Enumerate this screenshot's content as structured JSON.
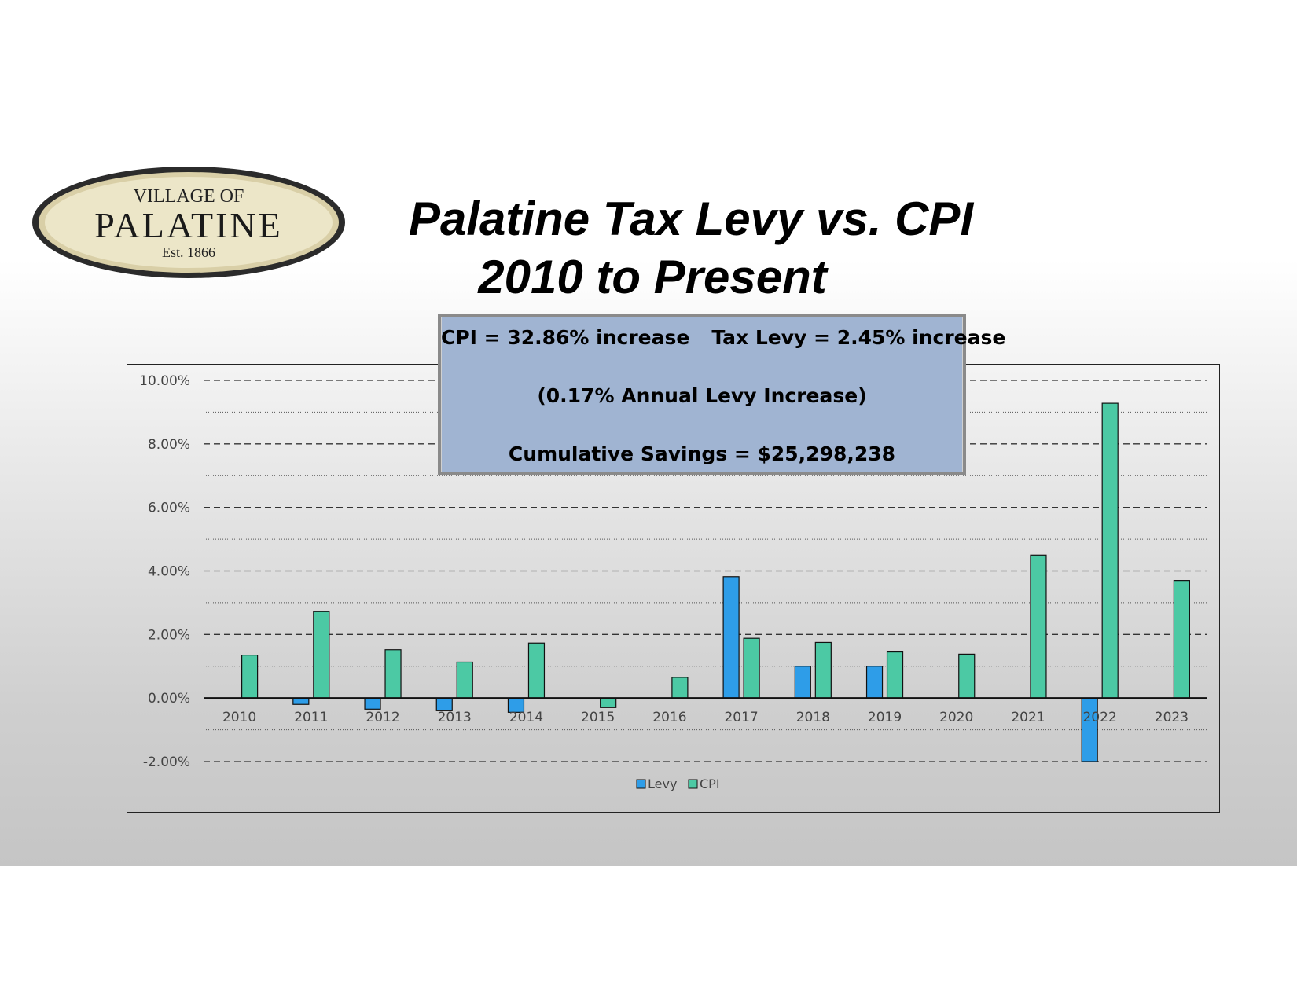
{
  "logo": {
    "line1": "VILLAGE OF",
    "line2": "PALATINE",
    "line3": "Est. 1866"
  },
  "title": {
    "line1": "Palatine Tax Levy vs. CPI",
    "line2": "2010 to Present"
  },
  "summary": {
    "cpi": "CPI = 32.86% increase",
    "levy": "Tax Levy = 2.45% increase",
    "annual": "(0.17% Annual Levy Increase)",
    "savings": "Cumulative Savings = $25,298,238"
  },
  "colors": {
    "levy": "#2e9de8",
    "cpi": "#4cc9a4",
    "summary_box": "#a0b4d2"
  },
  "chart_data": {
    "type": "bar",
    "categories": [
      "2010",
      "2011",
      "2012",
      "2013",
      "2014",
      "2015",
      "2016",
      "2017",
      "2018",
      "2019",
      "2020",
      "2021",
      "2022",
      "2023"
    ],
    "series": [
      {
        "name": "Levy",
        "values": [
          0.0,
          -0.2,
          -0.35,
          -0.4,
          -0.45,
          0.0,
          0.0,
          3.82,
          1.0,
          1.0,
          0.0,
          0.0,
          -2.0,
          0.0
        ]
      },
      {
        "name": "CPI",
        "values": [
          1.35,
          2.72,
          1.52,
          1.13,
          1.73,
          -0.3,
          0.65,
          1.88,
          1.75,
          1.45,
          1.38,
          4.5,
          9.28,
          3.7
        ]
      }
    ],
    "ylim": [
      -2,
      10
    ],
    "yticks": [
      "10.00%",
      "8.00%",
      "6.00%",
      "4.00%",
      "2.00%",
      "0.00%",
      "-2.00%"
    ],
    "ytick_values": [
      10,
      8,
      6,
      4,
      2,
      0,
      -2
    ],
    "grid": true,
    "legend": "bottom-center"
  }
}
